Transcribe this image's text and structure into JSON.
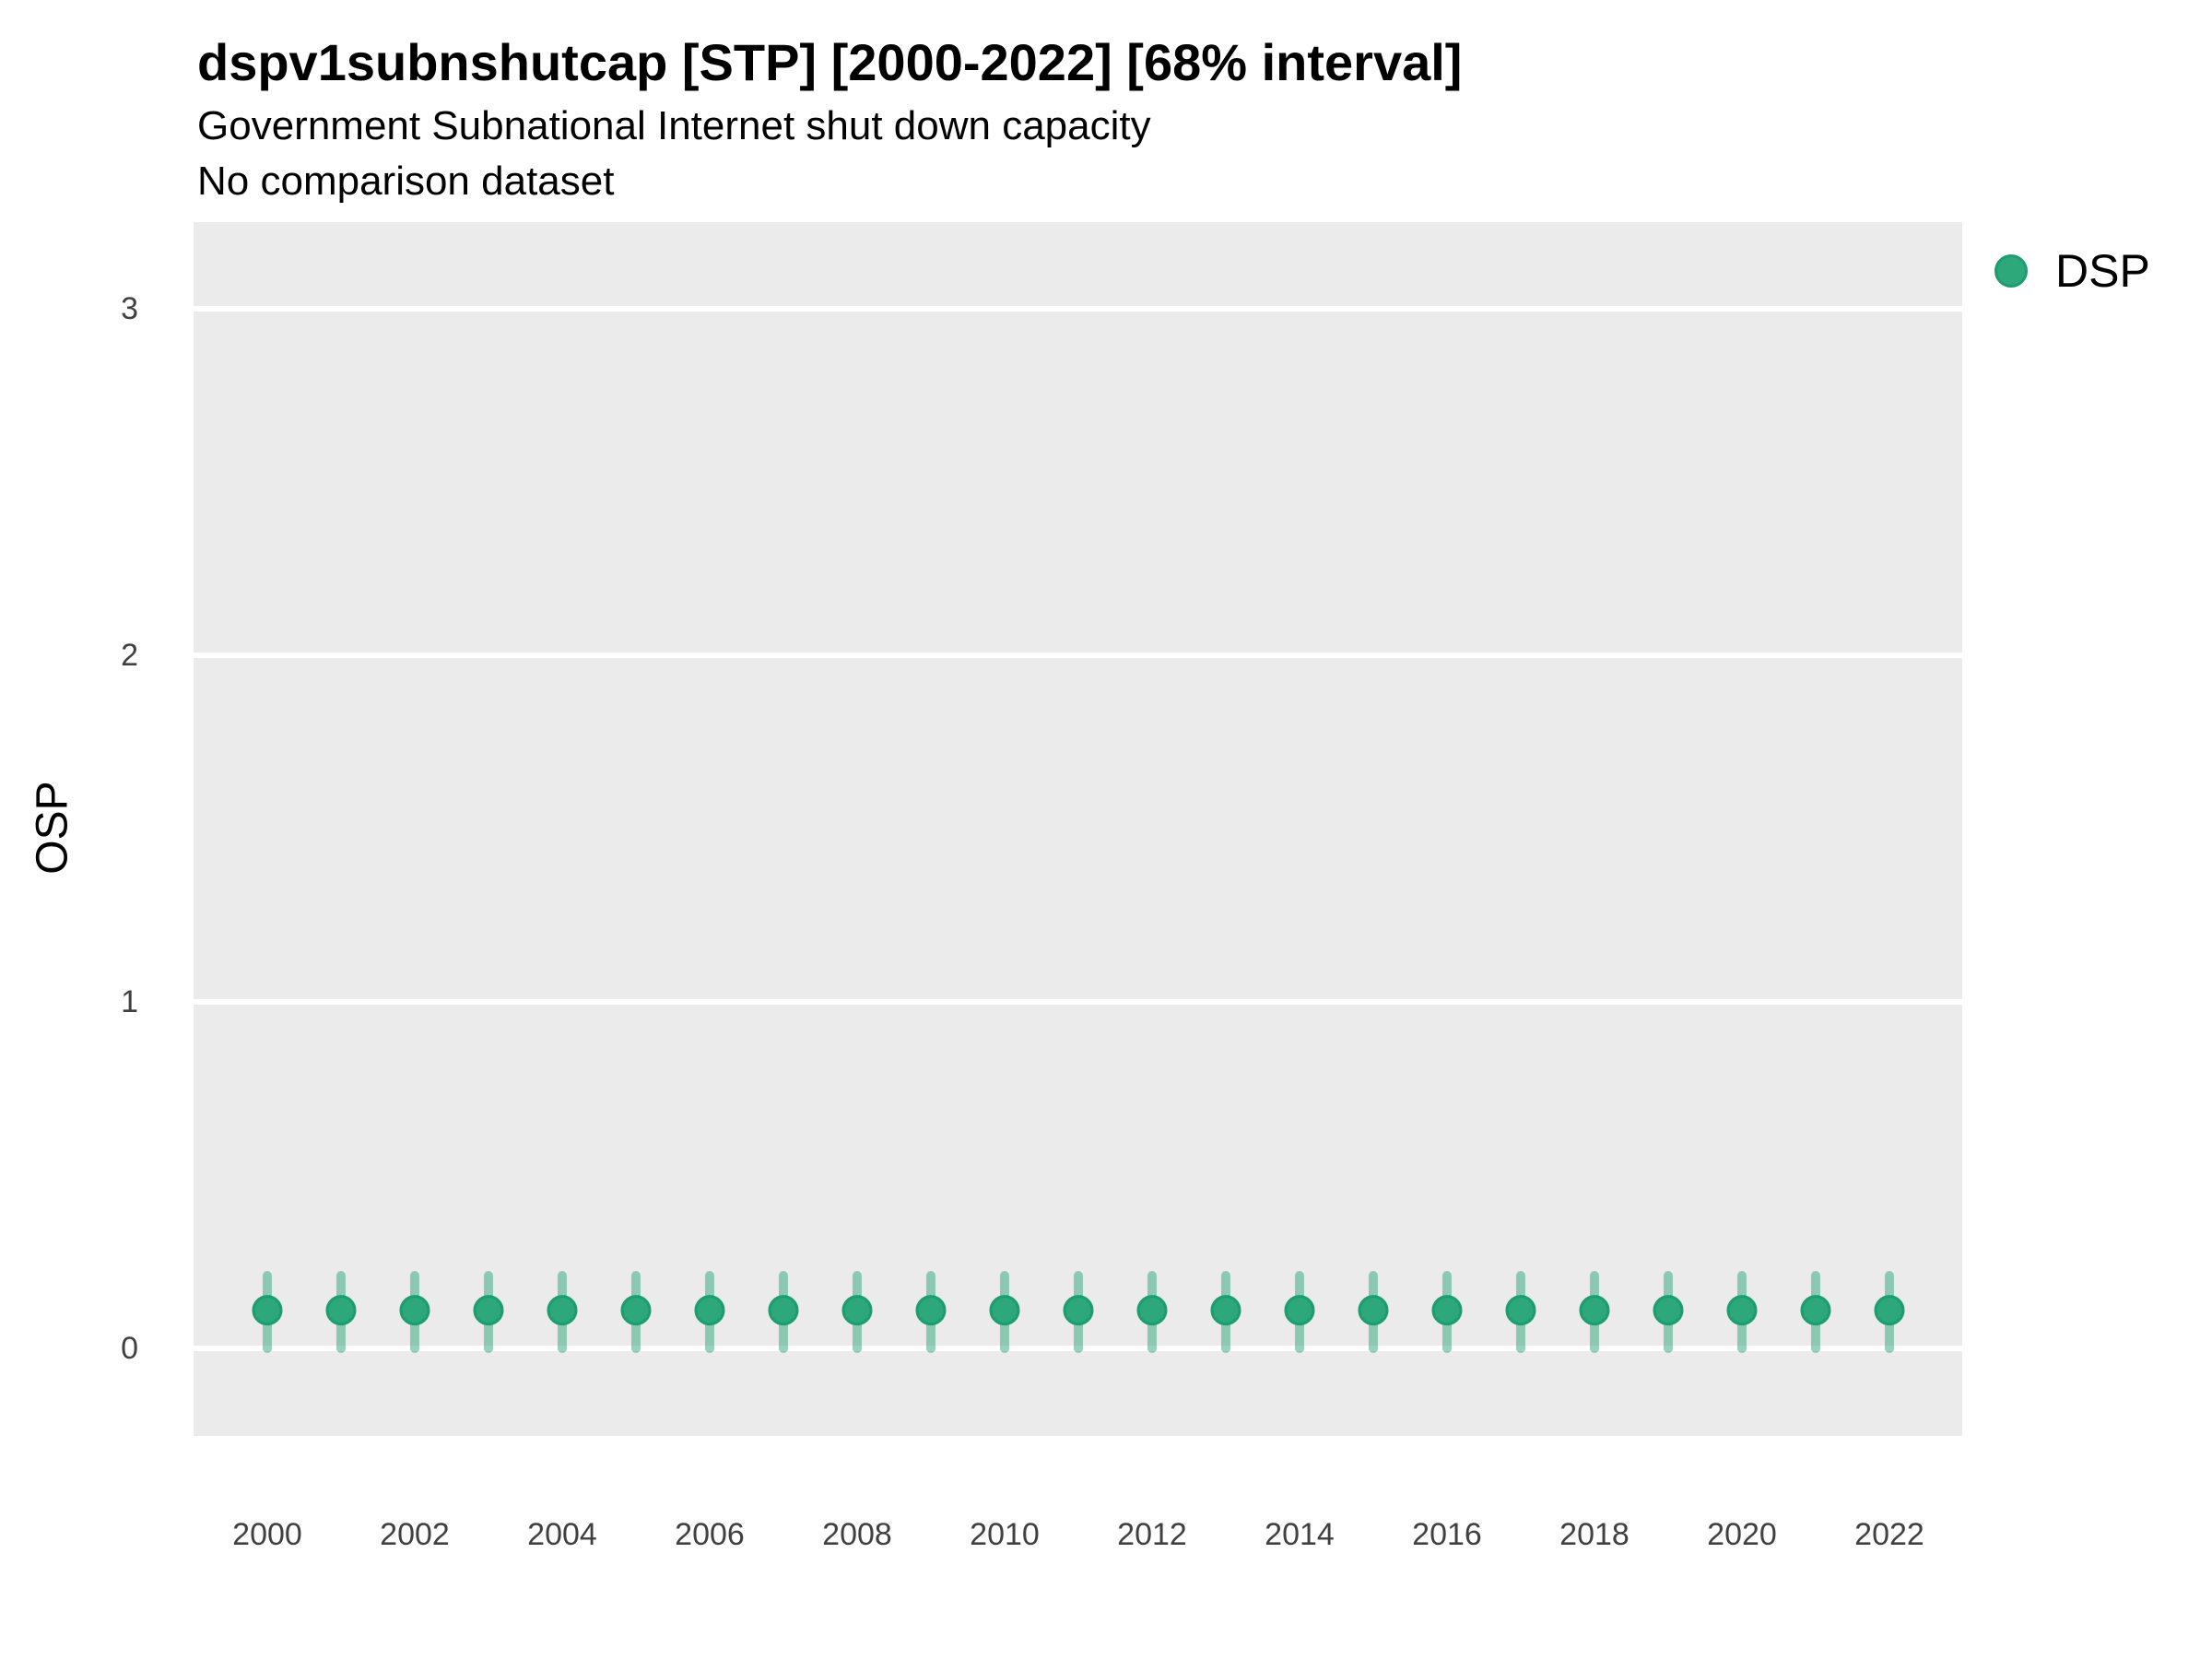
{
  "header": {
    "title": "dspv1subnshutcap [STP] [2000-2022] [68% interval]",
    "subtitle": "Government Subnational Internet shut down capacity",
    "note": "No comparison dataset"
  },
  "axes": {
    "y_title": "OSP"
  },
  "legend": {
    "label": "DSP"
  },
  "colors": {
    "panel_background": "#EBEBEB",
    "gridline": "#FFFFFF",
    "point_fill": "#2CA87B",
    "point_stroke": "#1E9C71",
    "interval_bar": "rgba(44,168,123,0.5)",
    "tick_text": "#404040",
    "text": "#000000"
  },
  "chart_data": {
    "type": "scatter",
    "title": "dspv1subnshutcap [STP] [2000-2022] [68% interval]",
    "subtitle": "Government Subnational Internet shut down capacity",
    "note": "No comparison dataset",
    "xlabel": "",
    "ylabel": "OSP",
    "interval_level": "68%",
    "legend_position": "top-right-outside",
    "grid": "horizontal-major-only",
    "xlim": [
      1999,
      2023
    ],
    "ylim": [
      -0.25,
      3.25
    ],
    "yticks": [
      0,
      1,
      2,
      3
    ],
    "x_tick_labels": [
      2000,
      2002,
      2004,
      2006,
      2008,
      2010,
      2012,
      2014,
      2016,
      2018,
      2020,
      2022
    ],
    "x": [
      2000,
      2001,
      2002,
      2003,
      2004,
      2005,
      2006,
      2007,
      2008,
      2009,
      2010,
      2011,
      2012,
      2013,
      2014,
      2015,
      2016,
      2017,
      2018,
      2019,
      2020,
      2021,
      2022
    ],
    "series": [
      {
        "name": "DSP",
        "point_estimates": [
          0.11,
          0.11,
          0.11,
          0.11,
          0.11,
          0.11,
          0.11,
          0.11,
          0.11,
          0.11,
          0.11,
          0.11,
          0.11,
          0.11,
          0.11,
          0.11,
          0.11,
          0.11,
          0.11,
          0.11,
          0.11,
          0.11,
          0.11
        ],
        "interval_low": [
          0.0,
          0.0,
          0.0,
          0.0,
          0.0,
          0.0,
          0.0,
          0.0,
          0.0,
          0.0,
          0.0,
          0.0,
          0.0,
          0.0,
          0.0,
          0.0,
          0.0,
          0.0,
          0.0,
          0.0,
          0.0,
          0.0,
          0.0
        ],
        "interval_high": [
          0.21,
          0.21,
          0.21,
          0.21,
          0.21,
          0.21,
          0.21,
          0.21,
          0.21,
          0.21,
          0.21,
          0.21,
          0.21,
          0.21,
          0.21,
          0.21,
          0.21,
          0.21,
          0.21,
          0.21,
          0.21,
          0.21,
          0.21
        ]
      }
    ]
  }
}
